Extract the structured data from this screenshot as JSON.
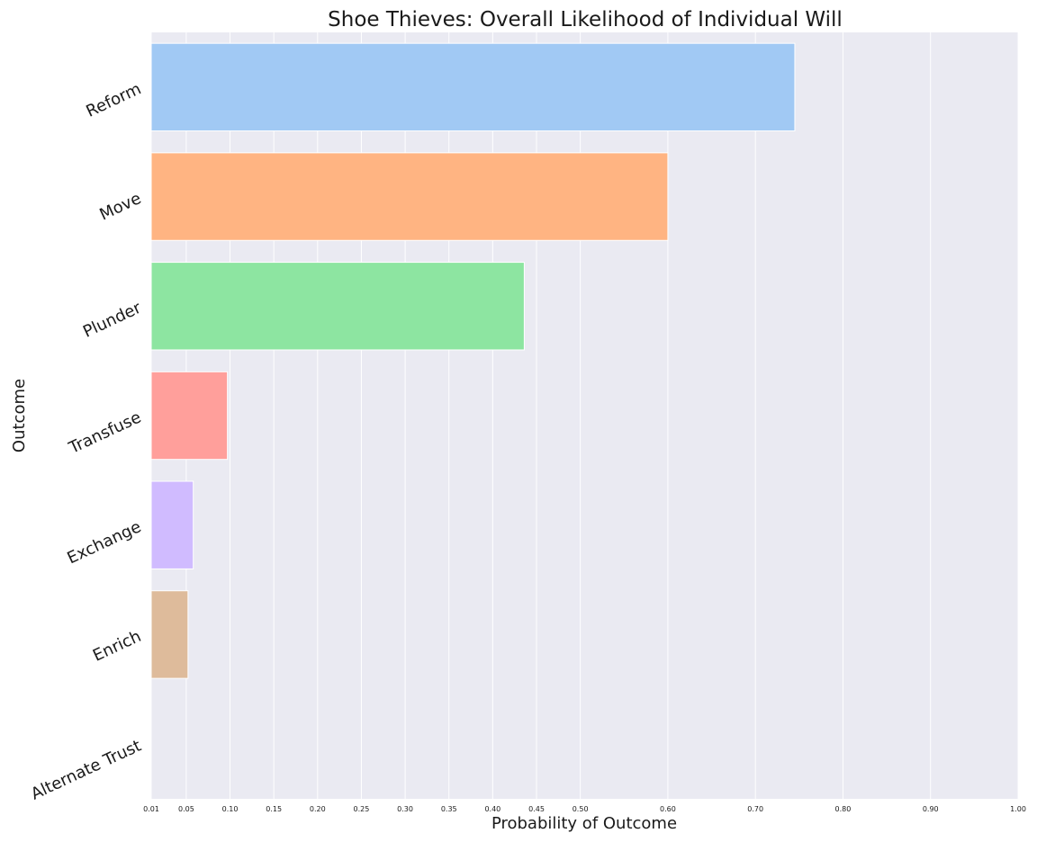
{
  "chart_data": {
    "type": "bar",
    "orientation": "horizontal",
    "title": "Shoe Thieves: Overall Likelihood of Individual Will",
    "xlabel": "Probability of Outcome",
    "ylabel": "Outcome",
    "xlim": [
      0.01,
      1.0
    ],
    "xticks": [
      0.01,
      0.05,
      0.1,
      0.15,
      0.2,
      0.25,
      0.3,
      0.35,
      0.4,
      0.45,
      0.5,
      0.6,
      0.7,
      0.8,
      0.9,
      1.0
    ],
    "xtick_labels": [
      "0.01",
      "0.05",
      "0.10",
      "0.15",
      "0.20",
      "0.25",
      "0.30",
      "0.35",
      "0.40",
      "0.45",
      "0.50",
      "0.60",
      "0.70",
      "0.80",
      "0.90",
      "1.00"
    ],
    "categories": [
      "Reform",
      "Move",
      "Plunder",
      "Transfuse",
      "Exchange",
      "Enrich",
      "Alternate Trust"
    ],
    "values": [
      0.745,
      0.6,
      0.436,
      0.097,
      0.058,
      0.052,
      0.005
    ],
    "colors": [
      "#a1c9f4",
      "#ffb482",
      "#8de5a1",
      "#ff9f9b",
      "#d0bbff",
      "#debb9b",
      "#fab0e4"
    ],
    "grid": true,
    "background": "#eaeaf2",
    "grid_color": "#ffffff"
  }
}
